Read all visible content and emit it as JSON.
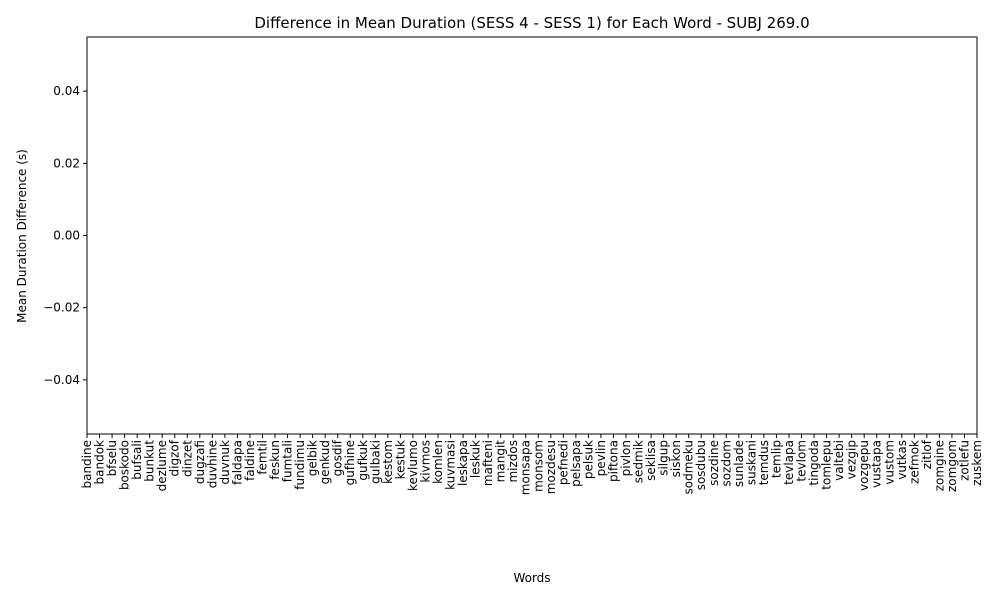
{
  "chart_data": {
    "type": "bar",
    "title": "Difference in Mean Duration (SESS 4 - SESS 1) for Each Word - SUBJ 269.0",
    "xlabel": "Words",
    "ylabel": "Mean Duration Difference (s)",
    "ylim": [
      -0.055,
      0.055
    ],
    "yticks": [
      -0.04,
      -0.02,
      0.0,
      0.02,
      0.04
    ],
    "ytick_labels": [
      "−0.04",
      "−0.02",
      "0.00",
      "0.02",
      "0.04"
    ],
    "grid": false,
    "categories": [
      "bandine",
      "bandok",
      "bfselu",
      "boskodo",
      "bufsali",
      "bunkut",
      "dezlume",
      "digzof",
      "dinzet",
      "dugzafi",
      "duvhine",
      "duvnuk",
      "faldapa",
      "faldine",
      "femtil",
      "feskun",
      "fumtali",
      "fundimu",
      "gelbik",
      "genkud",
      "gosdif",
      "gufhine",
      "gufkuk",
      "gulbaki",
      "kestom",
      "kestuk",
      "kevlumo",
      "kivmos",
      "komlen",
      "kuvmasi",
      "leskapa",
      "leskuk",
      "mafteni",
      "mangit",
      "mizdos",
      "monsapa",
      "monsom",
      "mozdesu",
      "pefnedi",
      "pelsapa",
      "pelsuk",
      "pevlin",
      "piftona",
      "pivlon",
      "sedmik",
      "seklisa",
      "silgup",
      "siskon",
      "sodmeku",
      "sosdubu",
      "sozdine",
      "sozdom",
      "sunlade",
      "suskani",
      "temdus",
      "temlip",
      "tevlapa",
      "tevlom",
      "tingoda",
      "tomlepu",
      "valtebi",
      "vezgip",
      "vozgepu",
      "vustapa",
      "vustom",
      "vutkas",
      "zefmok",
      "zitlof",
      "zomgine",
      "zomgom",
      "zotlefu",
      "zuskem"
    ],
    "values": [
      0,
      0,
      0,
      0,
      0,
      0,
      0,
      0,
      0,
      0,
      0,
      0,
      0,
      0,
      0,
      0,
      0,
      0,
      0,
      0,
      0,
      0,
      0,
      0,
      0,
      0,
      0,
      0,
      0,
      0,
      0,
      0,
      0,
      0,
      0,
      0,
      0,
      0,
      0,
      0,
      0,
      0,
      0,
      0,
      0,
      0,
      0,
      0,
      0,
      0,
      0,
      0,
      0,
      0,
      0,
      0,
      0,
      0,
      0,
      0,
      0,
      0,
      0,
      0,
      0,
      0,
      0,
      0,
      0,
      0,
      0,
      0
    ]
  }
}
